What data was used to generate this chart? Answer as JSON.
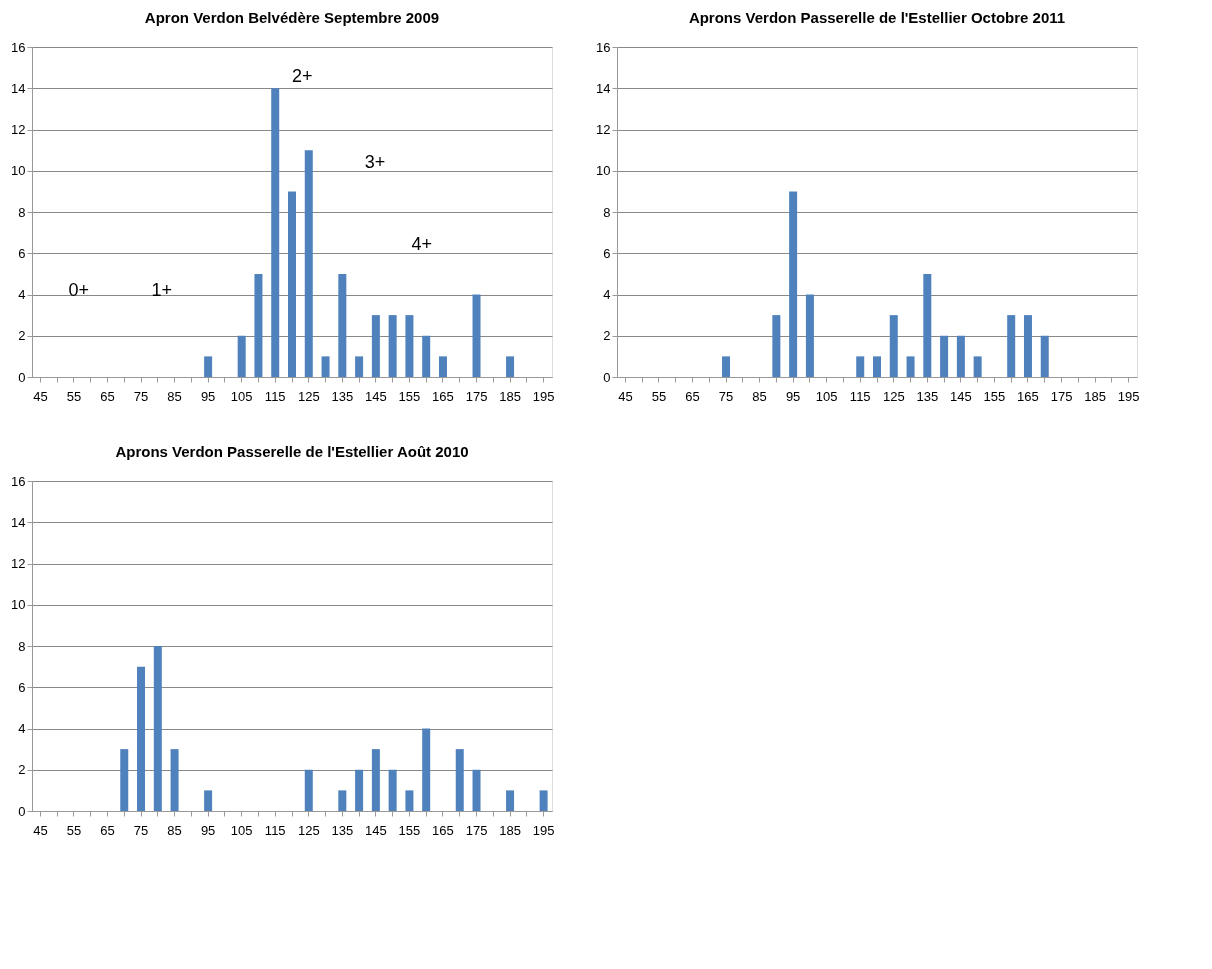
{
  "chart_data": [
    {
      "type": "bar",
      "title": "Apron Verdon Belvédère Septembre 2009",
      "categories": [
        "45",
        null,
        "55",
        null,
        "65",
        null,
        "75",
        null,
        "85",
        null,
        "95",
        null,
        "105",
        null,
        "115",
        null,
        "125",
        null,
        "135",
        null,
        "145",
        null,
        "155",
        null,
        "165",
        null,
        "175",
        null,
        "185",
        null,
        "195"
      ],
      "values": [
        0,
        0,
        0,
        0,
        0,
        0,
        0,
        0,
        0,
        0,
        1,
        0,
        2,
        5,
        14,
        9,
        11,
        1,
        5,
        1,
        3,
        3,
        3,
        2,
        1,
        0,
        4,
        0,
        1,
        0,
        0
      ],
      "color": "#4f81bd",
      "ylim": [
        0,
        16
      ],
      "yticks": [
        0,
        2,
        4,
        6,
        8,
        10,
        12,
        14,
        16
      ],
      "grid": "y",
      "annotations": [
        "0+",
        "1+",
        "2+",
        "3+",
        "4+"
      ]
    },
    {
      "type": "bar",
      "title": "Aprons Verdon Passerelle de l'Estellier Octobre 2011",
      "categories": [
        "45",
        null,
        "55",
        null,
        "65",
        null,
        "75",
        null,
        "85",
        null,
        "95",
        null,
        "105",
        null,
        "115",
        null,
        "125",
        null,
        "135",
        null,
        "145",
        null,
        "155",
        null,
        "165",
        null,
        "175",
        null,
        "185",
        null,
        "195"
      ],
      "values": [
        0,
        0,
        0,
        0,
        0,
        0,
        1,
        0,
        0,
        3,
        9,
        4,
        0,
        0,
        1,
        1,
        3,
        1,
        5,
        2,
        2,
        1,
        0,
        3,
        3,
        2,
        0,
        0,
        0,
        0,
        0
      ],
      "color": "#4f81bd",
      "ylim": [
        0,
        16
      ],
      "yticks": [
        0,
        2,
        4,
        6,
        8,
        10,
        12,
        14,
        16
      ],
      "grid": "y"
    },
    {
      "type": "bar",
      "title": "Aprons Verdon Passerelle de l'Estellier Août 2010",
      "categories": [
        "45",
        null,
        "55",
        null,
        "65",
        null,
        "75",
        null,
        "85",
        null,
        "95",
        null,
        "105",
        null,
        "115",
        null,
        "125",
        null,
        "135",
        null,
        "145",
        null,
        "155",
        null,
        "165",
        null,
        "175",
        null,
        "185",
        null,
        "195"
      ],
      "values": [
        0,
        0,
        0,
        0,
        0,
        3,
        7,
        8,
        3,
        0,
        1,
        0,
        0,
        0,
        0,
        0,
        2,
        0,
        1,
        2,
        3,
        2,
        1,
        4,
        0,
        3,
        2,
        0,
        1,
        0,
        1
      ],
      "color": "#4f81bd",
      "ylim": [
        0,
        16
      ],
      "yticks": [
        0,
        2,
        4,
        6,
        8,
        10,
        12,
        14,
        16
      ],
      "grid": "y"
    }
  ]
}
